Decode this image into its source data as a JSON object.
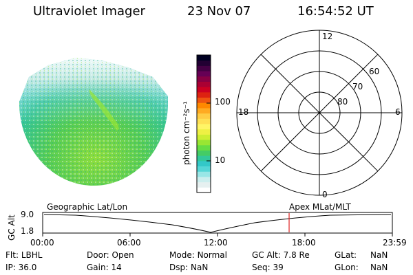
{
  "header": {
    "instrument": "Ultraviolet Imager",
    "date": "23 Nov 07",
    "time": "16:54:52 UT"
  },
  "colorbar": {
    "label": "photon cm⁻²s⁻¹",
    "ticks": [
      "100",
      "10"
    ],
    "colors": [
      "#ffffff",
      "#e6f0f0",
      "#cceeee",
      "#99e6e6",
      "#55d6d6",
      "#33c8c8",
      "#33c89b",
      "#44cc66",
      "#66dd44",
      "#99e633",
      "#ccee33",
      "#eef044",
      "#fff566",
      "#ffe055",
      "#ffcc44",
      "#ffaa22",
      "#ff8800",
      "#ee5511",
      "#dd2211",
      "#cc0022",
      "#aa0033",
      "#880044",
      "#660055",
      "#440044",
      "#220033",
      "#000022"
    ]
  },
  "polar": {
    "labels": {
      "top": "12",
      "bottom": "0",
      "left": "18",
      "right": "6",
      "ring60": "60",
      "ring70": "70",
      "ring80": "80"
    }
  },
  "timeline": {
    "left_label": "Geographic Lat/Lon",
    "right_label": "Apex MLat/MLT",
    "axis_title": "GC Alt",
    "y_max": "9.0",
    "y_min": "1.8",
    "x_ticks": [
      "00:00",
      "06:00",
      "12:00",
      "18:00",
      "23:59"
    ],
    "marker_time": "16:54:52",
    "curve_color": "#000000",
    "marker_color": "#dd2222"
  },
  "footer": {
    "row1": [
      {
        "key": "Flt:",
        "value": "LBHL"
      },
      {
        "key": "Door:",
        "value": "Open"
      },
      {
        "key": "Mode:",
        "value": "Normal"
      },
      {
        "key": "GC Alt:",
        "value": "7.8 Re"
      },
      {
        "key": "GLat:",
        "value": "NaN"
      }
    ],
    "row2": [
      {
        "key": "IP:",
        "value": "36.0"
      },
      {
        "key": "Gain:",
        "value": "14"
      },
      {
        "key": "Dsp:",
        "value": "NaN"
      },
      {
        "key": "Seq:",
        "value": "39"
      },
      {
        "key": "GLon:",
        "value": "NaN"
      }
    ]
  }
}
